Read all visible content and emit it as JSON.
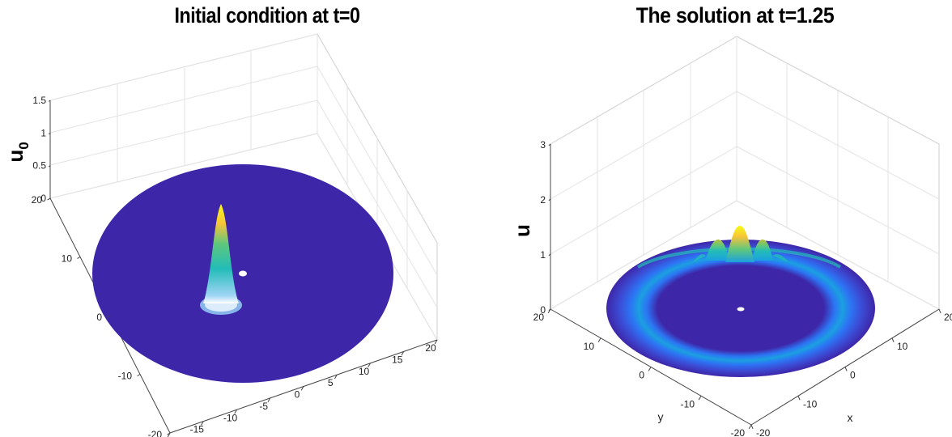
{
  "chart_data": [
    {
      "type": "surface",
      "title": "Initial condition at t=0",
      "zlabel": "u",
      "zlabel_sub": "0",
      "zlim": [
        0,
        1.5
      ],
      "zticks": [
        "0",
        "0.5",
        "1",
        "1.5"
      ],
      "xticks": [
        "-20",
        "-15",
        "-10",
        "-5",
        "0",
        "5",
        "10",
        "15",
        "20"
      ],
      "yticks": [
        "-20",
        "-10",
        "0",
        "10",
        "20"
      ],
      "peak": {
        "x": -6,
        "y": 0,
        "z": 1.3
      },
      "colormap": [
        "#3e26a8",
        "#3b4dd6",
        "#2c75f4",
        "#1ba0e0",
        "#22bcb8",
        "#5fc77c",
        "#b8c03b",
        "#f6c33a",
        "#f9fb15"
      ]
    },
    {
      "type": "surface",
      "title": "The solution at t=1.25",
      "zlabel": "u",
      "xlabel": "x",
      "ylabel": "y",
      "zlim": [
        0,
        3
      ],
      "zticks": [
        "0",
        "1",
        "2",
        "3"
      ],
      "xticks": [
        "-20",
        "-10",
        "0",
        "10",
        "20"
      ],
      "yticks": [
        "-20",
        "-10",
        "0",
        "10",
        "20"
      ],
      "ring_radius": 12,
      "peak": {
        "z": 1.45
      },
      "colormap": [
        "#3e26a8",
        "#3b4dd6",
        "#2c75f4",
        "#1ba0e0",
        "#22bcb8",
        "#5fc77c",
        "#b8c03b",
        "#f6c33a",
        "#f9fb15"
      ]
    }
  ]
}
